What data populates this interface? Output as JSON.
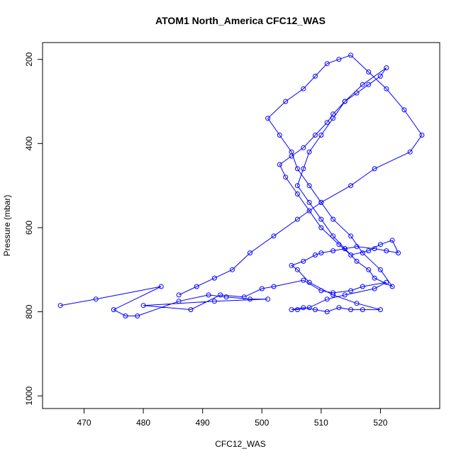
{
  "chart_data": {
    "type": "scatter",
    "title": "ATOM1 North_America CFC12_WAS",
    "xlabel": "CFC12_WAS",
    "ylabel": "Pressure (mbar)",
    "xlim": [
      463,
      530
    ],
    "ylim": [
      1030,
      160
    ],
    "y_reversed": true,
    "x_ticks": [
      470,
      480,
      490,
      500,
      510,
      520
    ],
    "y_ticks": [
      200,
      400,
      600,
      800,
      1000
    ],
    "grid": false,
    "legend": "none",
    "point_style": "open-circle",
    "line_connected": true,
    "color": "#0000ff",
    "series": [
      {
        "x": [
          466,
          472,
          483,
          475,
          477,
          479,
          486,
          491,
          494,
          498,
          501,
          492,
          480,
          488,
          493,
          497,
          500,
          502,
          507,
          510,
          512,
          515,
          517,
          521,
          519,
          514,
          511,
          508,
          506,
          505,
          507,
          509,
          511,
          513,
          515,
          517,
          520,
          516,
          512,
          508,
          506,
          505,
          507,
          509,
          510,
          512,
          514,
          516,
          519,
          521,
          523,
          522,
          520,
          518,
          515,
          513,
          510,
          508,
          506,
          504,
          503,
          505,
          507,
          509,
          511,
          512,
          514,
          516,
          518,
          520,
          521,
          517,
          514,
          512,
          510,
          508,
          507,
          506,
          508,
          510,
          512,
          514,
          516,
          518,
          519,
          522,
          520,
          517,
          515,
          512,
          510,
          508,
          506,
          505,
          503,
          501,
          504,
          507,
          509,
          511,
          513,
          515,
          518,
          521,
          524,
          527,
          525,
          519,
          515,
          510,
          506,
          502,
          498,
          495,
          492,
          489,
          486
        ],
        "y": [
          785,
          770,
          740,
          795,
          810,
          810,
          775,
          760,
          765,
          770,
          770,
          775,
          785,
          795,
          760,
          765,
          745,
          740,
          725,
          750,
          755,
          750,
          740,
          730,
          745,
          760,
          770,
          790,
          795,
          795,
          790,
          795,
          800,
          790,
          795,
          795,
          795,
          780,
          760,
          730,
          700,
          690,
          680,
          665,
          660,
          655,
          650,
          645,
          650,
          655,
          660,
          630,
          640,
          655,
          665,
          640,
          600,
          560,
          520,
          480,
          450,
          430,
          410,
          380,
          350,
          330,
          300,
          280,
          260,
          240,
          220,
          260,
          300,
          340,
          380,
          420,
          460,
          500,
          540,
          580,
          620,
          650,
          680,
          700,
          720,
          740,
          700,
          660,
          620,
          580,
          540,
          500,
          460,
          420,
          380,
          340,
          300,
          270,
          240,
          210,
          200,
          190,
          230,
          270,
          320,
          380,
          420,
          460,
          500,
          540,
          580,
          620,
          660,
          700,
          720,
          740,
          760
        ]
      }
    ]
  }
}
